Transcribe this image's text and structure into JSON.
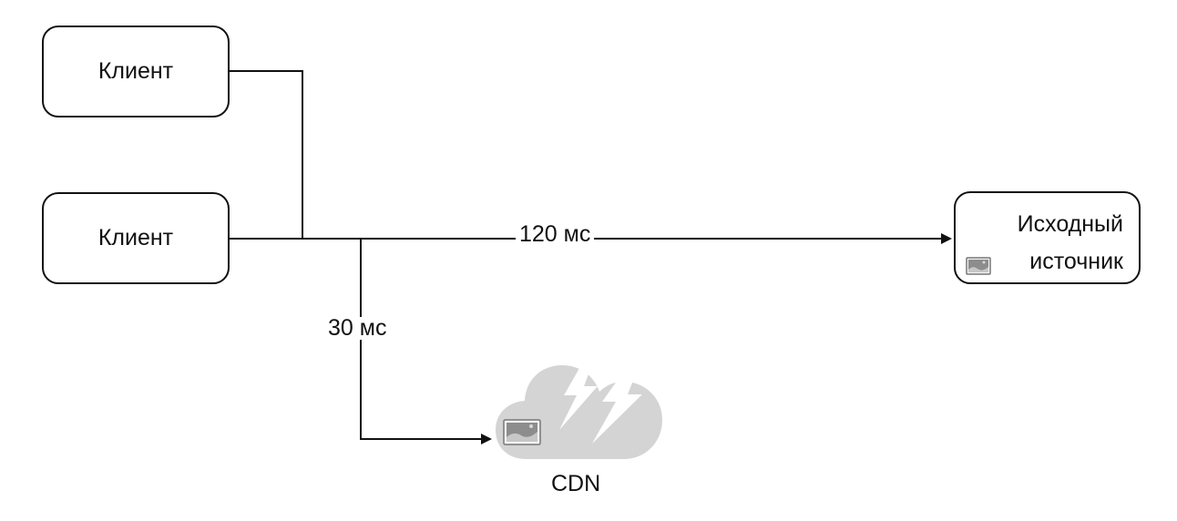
{
  "nodes": {
    "client_top": "Клиент",
    "client_bottom": "Клиент",
    "origin_line1": "Исходный",
    "origin_line2": "источник",
    "cdn": "CDN"
  },
  "edges": {
    "to_origin_label": "120 мс",
    "to_cdn_label": "30 мс"
  },
  "icons": {
    "origin_icon": "image-icon",
    "cdn_icon": "cloud-lightning-icon",
    "cdn_image_icon": "image-icon"
  },
  "colors": {
    "line": "#111111",
    "cloud": "#d4d4d4",
    "icon": "#8d8d8d"
  }
}
